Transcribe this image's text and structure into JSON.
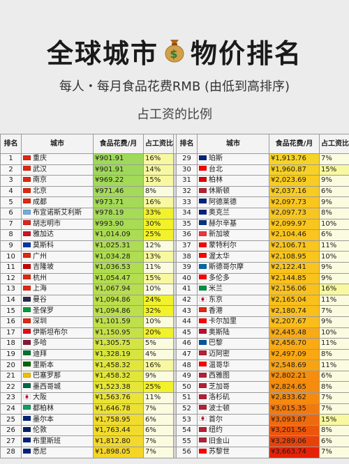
{
  "header": {
    "title_left": "全球城市",
    "title_right": "物价排名",
    "icon": "money-bag-icon",
    "subtitle": "每人・每月食品花费RMB (由低到高排序)",
    "subtitle2": "占工资的比例"
  },
  "table": {
    "columns": [
      "排名",
      "城市",
      "食品花费/月",
      "占工资比例"
    ],
    "left": [
      {
        "rank": "1",
        "city": "重庆",
        "price": "¥901.91",
        "pct": "16%",
        "flag": "#de2910",
        "bg": "#9fd95a"
      },
      {
        "rank": "2",
        "city": "武汉",
        "price": "¥901.91",
        "pct": "14%",
        "flag": "#de2910",
        "bg": "#9fd95a"
      },
      {
        "rank": "3",
        "city": "南京",
        "price": "¥969.22",
        "pct": "15%",
        "flag": "#de2910",
        "bg": "#a3da58"
      },
      {
        "rank": "4",
        "city": "北京",
        "price": "¥971.46",
        "pct": "8%",
        "flag": "#de2910",
        "bg": "#a4da57"
      },
      {
        "rank": "5",
        "city": "成都",
        "price": "¥973.71",
        "pct": "16%",
        "flag": "#de2910",
        "bg": "#a4da57"
      },
      {
        "rank": "6",
        "city": "布宜诺斯艾利斯",
        "price": "¥978.19",
        "pct": "33%",
        "flag": "#74acdf",
        "bg": "#a6db56"
      },
      {
        "rank": "7",
        "city": "胡志明市",
        "price": "¥993.90",
        "pct": "30%",
        "flag": "#da251d",
        "bg": "#a9db55"
      },
      {
        "rank": "8",
        "city": "雅加达",
        "price": "¥1,014.09",
        "pct": "25%",
        "flag": "#ce1126",
        "bg": "#acdc53"
      },
      {
        "rank": "9",
        "city": "莫斯科",
        "price": "¥1,025.31",
        "pct": "12%",
        "flag": "#0039a6",
        "bg": "#aedc52"
      },
      {
        "rank": "10",
        "city": "广州",
        "price": "¥1,034.28",
        "pct": "13%",
        "flag": "#de2910",
        "bg": "#b0dd51"
      },
      {
        "rank": "11",
        "city": "吉隆坡",
        "price": "¥1,036.53",
        "pct": "11%",
        "flag": "#cc0001",
        "bg": "#b1dd51"
      },
      {
        "rank": "12",
        "city": "杭州",
        "price": "¥1,054.47",
        "pct": "15%",
        "flag": "#de2910",
        "bg": "#b4de50"
      },
      {
        "rank": "13",
        "city": "上海",
        "price": "¥1,067.94",
        "pct": "10%",
        "flag": "#de2910",
        "bg": "#b7de4e"
      },
      {
        "rank": "14",
        "city": "曼谷",
        "price": "¥1,094.86",
        "pct": "24%",
        "flag": "#2d2a4a",
        "bg": "#bcdf4c"
      },
      {
        "rank": "15",
        "city": "圣保罗",
        "price": "¥1,094.86",
        "pct": "32%",
        "flag": "#009c3b",
        "bg": "#bcdf4c"
      },
      {
        "rank": "16",
        "city": "深圳",
        "price": "¥1,101.59",
        "pct": "10%",
        "flag": "#de2910",
        "bg": "#bee04b"
      },
      {
        "rank": "17",
        "city": "伊斯坦布尔",
        "price": "¥1,150.95",
        "pct": "20%",
        "flag": "#e30a17",
        "bg": "#c6e148"
      },
      {
        "rank": "18",
        "city": "多哈",
        "price": "¥1,305.75",
        "pct": "5%",
        "flag": "#8a1538",
        "bg": "#d4e442"
      },
      {
        "rank": "19",
        "city": "迪拜",
        "price": "¥1,328.19",
        "pct": "4%",
        "flag": "#00732f",
        "bg": "#d8e541"
      },
      {
        "rank": "20",
        "city": "里斯本",
        "price": "¥1,458.32",
        "pct": "16%",
        "flag": "#006600",
        "bg": "#e2e63b"
      },
      {
        "rank": "21",
        "city": "巴塞罗那",
        "price": "¥1,458.32",
        "pct": "9%",
        "flag": "#f1bf00",
        "bg": "#e2e63b"
      },
      {
        "rank": "22",
        "city": "墨西哥城",
        "price": "¥1,523.38",
        "pct": "25%",
        "flag": "#006847",
        "bg": "#e6e638"
      },
      {
        "rank": "23",
        "city": "大阪",
        "price": "¥1,563.76",
        "pct": "11%",
        "flag": "#ffffff",
        "bg": "#e9e436"
      },
      {
        "rank": "24",
        "city": "都柏林",
        "price": "¥1,646.78",
        "pct": "7%",
        "flag": "#169b62",
        "bg": "#ede133"
      },
      {
        "rank": "25",
        "city": "墨尔本",
        "price": "¥1,758.95",
        "pct": "6%",
        "flag": "#00247d",
        "bg": "#f1dc2e"
      },
      {
        "rank": "26",
        "city": "伦敦",
        "price": "¥1,763.44",
        "pct": "6%",
        "flag": "#012169",
        "bg": "#f1dc2e"
      },
      {
        "rank": "27",
        "city": "布里斯班",
        "price": "¥1,812.80",
        "pct": "7%",
        "flag": "#00247d",
        "bg": "#f3d92b"
      },
      {
        "rank": "28",
        "city": "悉尼",
        "price": "¥1,898.05",
        "pct": "7%",
        "flag": "#00247d",
        "bg": "#f5d527"
      }
    ],
    "right": [
      {
        "rank": "29",
        "city": "珀斯",
        "price": "¥1,913.76",
        "pct": "7%",
        "flag": "#00247d",
        "bg": "#f6d426"
      },
      {
        "rank": "30",
        "city": "台北",
        "price": "¥1,960.87",
        "pct": "15%",
        "flag": "#fe0000",
        "bg": "#f7d124"
      },
      {
        "rank": "31",
        "city": "柏林",
        "price": "¥2,023.69",
        "pct": "9%",
        "flag": "#dd0000",
        "bg": "#f8cc22"
      },
      {
        "rank": "32",
        "city": "休斯顿",
        "price": "¥2,037.16",
        "pct": "6%",
        "flag": "#b22234",
        "bg": "#f8cb21"
      },
      {
        "rank": "33",
        "city": "阿德莱德",
        "price": "¥2,097.73",
        "pct": "9%",
        "flag": "#00247d",
        "bg": "#f9c61f"
      },
      {
        "rank": "34",
        "city": "奥克兰",
        "price": "¥2,097.73",
        "pct": "8%",
        "flag": "#00247d",
        "bg": "#f9c61f"
      },
      {
        "rank": "35",
        "city": "赫尔辛基",
        "price": "¥2,099.97",
        "pct": "10%",
        "flag": "#003580",
        "bg": "#f9c61f"
      },
      {
        "rank": "36",
        "city": "新加坡",
        "price": "¥2,104.46",
        "pct": "6%",
        "flag": "#ef3340",
        "bg": "#f9c51e"
      },
      {
        "rank": "37",
        "city": "蒙特利尔",
        "price": "¥2,106.71",
        "pct": "11%",
        "flag": "#ff0000",
        "bg": "#f9c51e"
      },
      {
        "rank": "38",
        "city": "渥太华",
        "price": "¥2,108.95",
        "pct": "10%",
        "flag": "#ff0000",
        "bg": "#f9c51e"
      },
      {
        "rank": "39",
        "city": "斯德哥尔摩",
        "price": "¥2,122.41",
        "pct": "9%",
        "flag": "#006aa7",
        "bg": "#fac41e"
      },
      {
        "rank": "40",
        "city": "多伦多",
        "price": "¥2,144.85",
        "pct": "9%",
        "flag": "#ff0000",
        "bg": "#fac21d"
      },
      {
        "rank": "41",
        "city": "米兰",
        "price": "¥2,156.06",
        "pct": "16%",
        "flag": "#009246",
        "bg": "#fac11c"
      },
      {
        "rank": "42",
        "city": "东京",
        "price": "¥2,165.04",
        "pct": "11%",
        "flag": "#ffffff",
        "bg": "#fac01c"
      },
      {
        "rank": "43",
        "city": "香港",
        "price": "¥2,180.74",
        "pct": "7%",
        "flag": "#de2910",
        "bg": "#fabf1b"
      },
      {
        "rank": "44",
        "city": "卡尔加里",
        "price": "¥2,207.67",
        "pct": "9%",
        "flag": "#ff0000",
        "bg": "#fabd1a"
      },
      {
        "rank": "45",
        "city": "奥斯陆",
        "price": "¥2,445.48",
        "pct": "10%",
        "flag": "#ba0c2f",
        "bg": "#f9ab14"
      },
      {
        "rank": "46",
        "city": "巴黎",
        "price": "¥2,456.70",
        "pct": "11%",
        "flag": "#0055a4",
        "bg": "#f9aa14"
      },
      {
        "rank": "47",
        "city": "迈阿密",
        "price": "¥2,497.09",
        "pct": "8%",
        "flag": "#b22234",
        "bg": "#f9a713"
      },
      {
        "rank": "48",
        "city": "温哥华",
        "price": "¥2,548.69",
        "pct": "11%",
        "flag": "#ff0000",
        "bg": "#f8a312"
      },
      {
        "rank": "49",
        "city": "西雅图",
        "price": "¥2,802.21",
        "pct": "6%",
        "flag": "#b22234",
        "bg": "#f58e0e"
      },
      {
        "rank": "50",
        "city": "芝加哥",
        "price": "¥2,824.65",
        "pct": "8%",
        "flag": "#b22234",
        "bg": "#f58c0e"
      },
      {
        "rank": "51",
        "city": "洛杉矶",
        "price": "¥2,833.62",
        "pct": "7%",
        "flag": "#b22234",
        "bg": "#f58b0e"
      },
      {
        "rank": "52",
        "city": "波士顿",
        "price": "¥3,015.35",
        "pct": "7%",
        "flag": "#b22234",
        "bg": "#f27a0c"
      },
      {
        "rank": "53",
        "city": "首尔",
        "price": "¥3,093.87",
        "pct": "15%",
        "flag": "#ffffff",
        "bg": "#ef6a0b"
      },
      {
        "rank": "54",
        "city": "纽约",
        "price": "¥3,201.56",
        "pct": "8%",
        "flag": "#b22234",
        "bg": "#ec560a"
      },
      {
        "rank": "55",
        "city": "旧金山",
        "price": "¥3,289.06",
        "pct": "6%",
        "flag": "#b22234",
        "bg": "#e94209"
      },
      {
        "rank": "56",
        "city": "苏黎世",
        "price": "¥3,663.74",
        "pct": "7%",
        "flag": "#ff0000",
        "bg": "#e52208"
      }
    ]
  },
  "pct_colors": {
    "hot": "#f2f22a",
    "mid": "#f8f8a0",
    "cool": "#fbfbe0"
  }
}
